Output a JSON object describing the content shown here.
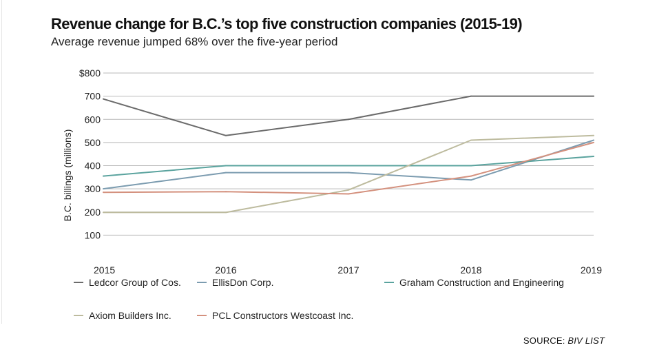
{
  "chart_data": {
    "type": "line",
    "title": "Revenue change for B.C.’s top five construction companies (2015-19)",
    "subtitle": "Average revenue jumped 68% over the five-year period",
    "xlabel": "",
    "ylabel": "B.C. billings (millions)",
    "x": [
      "2015",
      "2016",
      "2017",
      "2018",
      "2019"
    ],
    "ylim": [
      0,
      800
    ],
    "yticks": [
      100,
      200,
      300,
      400,
      500,
      600,
      700,
      800
    ],
    "ytick_labels": [
      "100",
      "200",
      "300",
      "400",
      "500",
      "600",
      "700",
      "$800"
    ],
    "grid": true,
    "legend_position": "bottom",
    "series": [
      {
        "name": "Ledcor Group of Cos.",
        "color": "#6b6b6b",
        "values": [
          688,
          530,
          600,
          700,
          700
        ]
      },
      {
        "name": "EllisDon Corp.",
        "color": "#7c9cb0",
        "values": [
          300,
          370,
          370,
          338,
          510
        ]
      },
      {
        "name": "Graham Construction and Engineering",
        "color": "#5aa39e",
        "values": [
          355,
          400,
          400,
          400,
          440
        ]
      },
      {
        "name": "Axiom Builders Inc.",
        "color": "#bdbb9e",
        "values": [
          198,
          198,
          295,
          510,
          530
        ]
      },
      {
        "name": "PCL Constructors Westcoast Inc.",
        "color": "#d4917e",
        "values": [
          285,
          288,
          278,
          355,
          500
        ]
      }
    ]
  },
  "source": {
    "prefix": "SOURCE: ",
    "name": "BIV LIST"
  }
}
